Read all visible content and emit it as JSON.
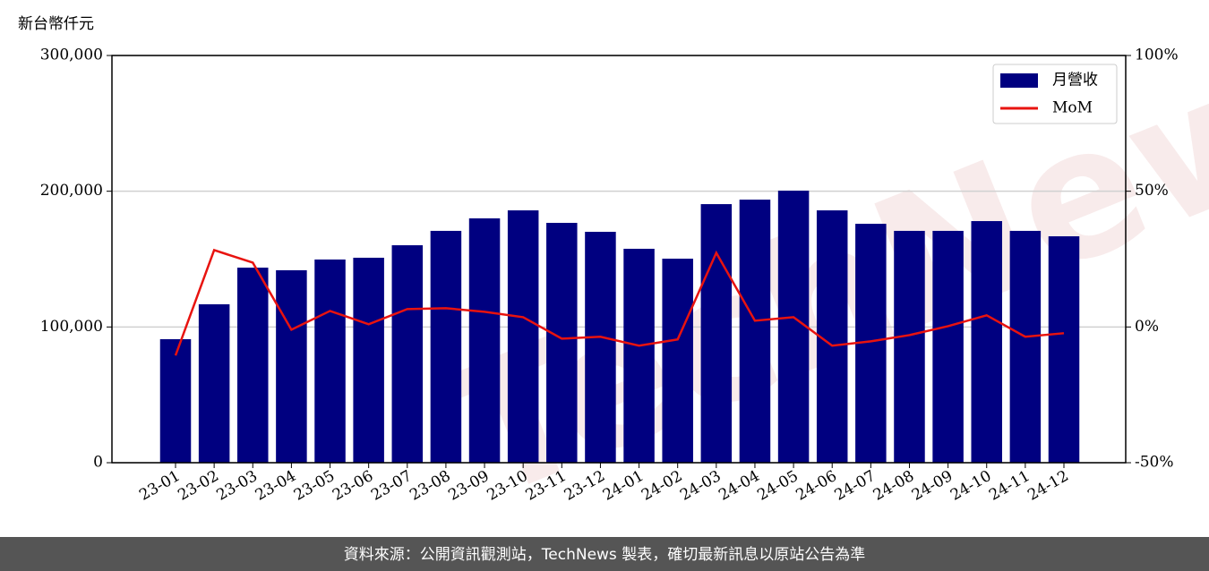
{
  "chart_data": {
    "type": "bar",
    "y_label": "新台幣仟元",
    "categories": [
      "23-01",
      "23-02",
      "23-03",
      "23-04",
      "23-05",
      "23-06",
      "23-07",
      "23-08",
      "23-09",
      "23-10",
      "23-11",
      "23-12",
      "24-01",
      "24-02",
      "24-03",
      "24-04",
      "24-05",
      "24-06",
      "24-07",
      "24-08",
      "24-09",
      "24-10",
      "24-11",
      "24-12"
    ],
    "series": [
      {
        "name": "月營收",
        "type": "bar",
        "color": "#000080",
        "values": [
          91000,
          116700,
          143700,
          141800,
          149700,
          151000,
          160200,
          170800,
          180000,
          185900,
          176700,
          170100,
          157600,
          150300,
          190500,
          193800,
          200400,
          185900,
          176000,
          170800,
          170800,
          178000,
          170800,
          166800
        ]
      },
      {
        "name": "MoM",
        "type": "line",
        "axis": "y2",
        "color": "#e8130f",
        "values": [
          -10.5,
          28.3,
          23.7,
          -1.0,
          5.9,
          1.0,
          6.6,
          6.9,
          5.6,
          3.6,
          -4.3,
          -3.6,
          -6.9,
          -4.6,
          27.3,
          2.3,
          3.6,
          -6.9,
          -5.3,
          -3.0,
          0.3,
          4.3,
          -3.6,
          -2.3
        ]
      }
    ],
    "ylim": [
      0,
      300000
    ],
    "yticks": [
      {
        "value": 0,
        "label": "0"
      },
      {
        "value": 100000,
        "label": "100,000"
      },
      {
        "value": 200000,
        "label": "200,000"
      },
      {
        "value": 300000,
        "label": "300,000"
      }
    ],
    "y2lim": [
      -50,
      100
    ],
    "y2ticks": [
      {
        "value": -50,
        "label": "-50%"
      },
      {
        "value": 0,
        "label": "0%"
      },
      {
        "value": 50,
        "label": "50%"
      },
      {
        "value": 100,
        "label": "100%"
      }
    ],
    "grid": true,
    "legend": "upper right",
    "watermark": "TechNews",
    "footer": "資料來源：公開資訊觀測站，TechNews 製表，確切最新訊息以原站公告為準"
  }
}
